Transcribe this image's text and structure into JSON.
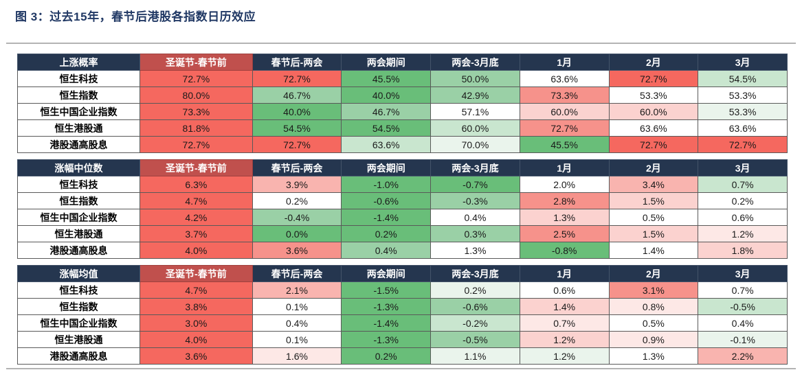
{
  "page": {
    "title": "图 3：过去15年，春节后港股各指数日历效应"
  },
  "palette": {
    "header_bg": "#25364F",
    "header_text": "#FFFFFF",
    "first_col_header_bg": "#C0504D",
    "title_color": "#203864",
    "r4": "#F5685F",
    "r3": "#F6928B",
    "r2": "#F9B4AF",
    "r1": "#FBD2CF",
    "r0": "#FDE8E6",
    "w": "#FFFFFF",
    "g0": "#EAF4EC",
    "g1": "#C9E6CF",
    "g2": "#9AD0A6",
    "g3": "#69BE79"
  },
  "chart_data": [
    {
      "type": "heatmap",
      "title": "上涨概率",
      "columns": [
        "圣诞节-春节前",
        "春节后-两会",
        "两会期间",
        "两会-3月底",
        "1月",
        "2月",
        "3月"
      ],
      "rows": [
        "恒生科技",
        "恒生指数",
        "恒生中国企业指数",
        "恒生港股通",
        "港股通高股息"
      ],
      "values": [
        [
          "72.7%",
          "72.7%",
          "45.5%",
          "50.0%",
          "63.6%",
          "72.7%",
          "54.5%"
        ],
        [
          "80.0%",
          "46.7%",
          "40.0%",
          "42.9%",
          "73.3%",
          "53.3%",
          "53.3%"
        ],
        [
          "73.3%",
          "40.0%",
          "46.7%",
          "57.1%",
          "60.0%",
          "60.0%",
          "53.3%"
        ],
        [
          "81.8%",
          "54.5%",
          "54.5%",
          "60.0%",
          "72.7%",
          "63.6%",
          "63.6%"
        ],
        [
          "72.7%",
          "72.7%",
          "63.6%",
          "70.0%",
          "45.5%",
          "72.7%",
          "72.7%"
        ]
      ],
      "colors": [
        [
          "r4",
          "r4",
          "g3",
          "g2",
          "w",
          "r4",
          "g1"
        ],
        [
          "r4",
          "g2",
          "g3",
          "g2",
          "r3",
          "w",
          "w"
        ],
        [
          "r4",
          "g3",
          "g2",
          "w",
          "r1",
          "r1",
          "g0"
        ],
        [
          "r4",
          "g3",
          "g3",
          "g1",
          "r3",
          "w",
          "w"
        ],
        [
          "r4",
          "r4",
          "g1",
          "g0",
          "g3",
          "r4",
          "r4"
        ]
      ]
    },
    {
      "type": "heatmap",
      "title": "涨幅中位数",
      "columns": [
        "圣诞节-春节前",
        "春节后-两会",
        "两会期间",
        "两会-3月底",
        "1月",
        "2月",
        "3月"
      ],
      "rows": [
        "恒生科技",
        "恒生指数",
        "恒生中国企业指数",
        "恒生港股通",
        "港股通高股息"
      ],
      "values": [
        [
          "6.3%",
          "3.9%",
          "-1.0%",
          "-0.7%",
          "2.0%",
          "3.4%",
          "0.7%"
        ],
        [
          "4.7%",
          "0.2%",
          "-0.6%",
          "-0.3%",
          "2.8%",
          "1.5%",
          "0.2%"
        ],
        [
          "4.2%",
          "-0.4%",
          "-1.4%",
          "0.4%",
          "1.3%",
          "0.5%",
          "0.6%"
        ],
        [
          "3.7%",
          "0.0%",
          "0.2%",
          "0.3%",
          "2.5%",
          "1.5%",
          "1.2%"
        ],
        [
          "4.0%",
          "3.6%",
          "0.4%",
          "1.3%",
          "-0.8%",
          "1.4%",
          "1.8%"
        ]
      ],
      "colors": [
        [
          "r4",
          "r2",
          "g3",
          "g3",
          "w",
          "r2",
          "g1"
        ],
        [
          "r4",
          "w",
          "g3",
          "g2",
          "r3",
          "r1",
          "w"
        ],
        [
          "r4",
          "g2",
          "g3",
          "w",
          "r1",
          "w",
          "w"
        ],
        [
          "r4",
          "g3",
          "g3",
          "g2",
          "r3",
          "r1",
          "r0"
        ],
        [
          "r4",
          "r3",
          "g2",
          "w",
          "g3",
          "w",
          "r1"
        ]
      ]
    },
    {
      "type": "heatmap",
      "title": "涨幅均值",
      "columns": [
        "圣诞节-春节前",
        "春节后-两会",
        "两会期间",
        "两会-3月底",
        "1月",
        "2月",
        "3月"
      ],
      "rows": [
        "恒生科技",
        "恒生指数",
        "恒生中国企业指数",
        "恒生港股通",
        "港股通高股息"
      ],
      "values": [
        [
          "4.7%",
          "2.1%",
          "-1.5%",
          "0.2%",
          "0.6%",
          "3.1%",
          "0.7%"
        ],
        [
          "3.8%",
          "0.1%",
          "-1.3%",
          "-0.6%",
          "1.4%",
          "0.8%",
          "-0.5%"
        ],
        [
          "3.0%",
          "0.4%",
          "-1.4%",
          "-0.2%",
          "0.7%",
          "0.5%",
          "0.4%"
        ],
        [
          "4.0%",
          "0.1%",
          "-1.3%",
          "-0.5%",
          "1.2%",
          "0.9%",
          "-0.1%"
        ],
        [
          "3.6%",
          "1.6%",
          "0.2%",
          "1.1%",
          "1.2%",
          "1.3%",
          "2.2%"
        ]
      ],
      "colors": [
        [
          "r4",
          "r2",
          "g3",
          "g0",
          "w",
          "r3",
          "w"
        ],
        [
          "r4",
          "w",
          "g3",
          "g2",
          "r1",
          "r0",
          "g1"
        ],
        [
          "r4",
          "w",
          "g3",
          "g1",
          "r0",
          "w",
          "w"
        ],
        [
          "r4",
          "w",
          "g3",
          "g2",
          "r1",
          "r0",
          "g0"
        ],
        [
          "r4",
          "r0",
          "g3",
          "g0",
          "g0",
          "w",
          "r2"
        ]
      ]
    }
  ]
}
